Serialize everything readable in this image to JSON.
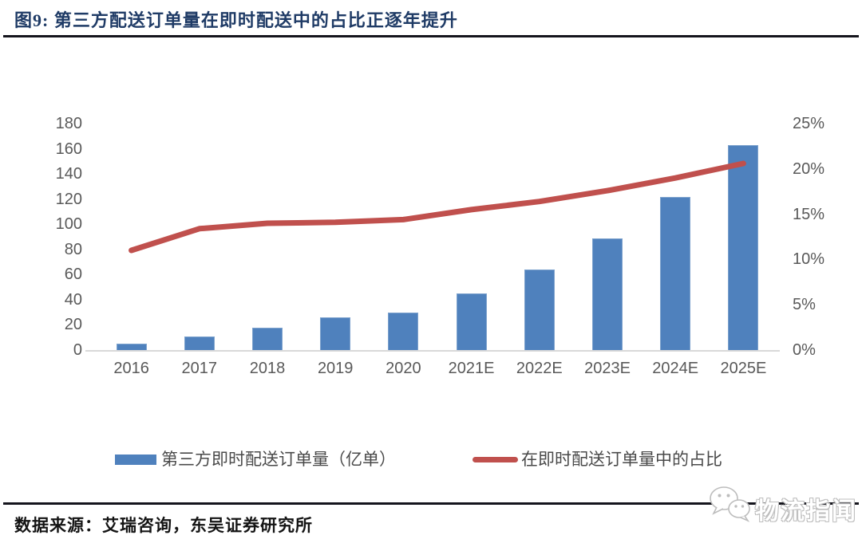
{
  "header": {
    "title": "图9:  第三方配送订单量在即时配送中的占比正逐年提升"
  },
  "chart_data": {
    "type": "bar",
    "subtype": "bar+line combo",
    "categories": [
      "2016",
      "2017",
      "2018",
      "2019",
      "2020",
      "2021E",
      "2022E",
      "2023E",
      "2024E",
      "2025E"
    ],
    "series": [
      {
        "name": "第三方即时配送订单量（亿单）",
        "type": "bar",
        "axis": "left",
        "color": "#4f81bd",
        "values": [
          5,
          11,
          18,
          26,
          30,
          45,
          64,
          89,
          122,
          163
        ]
      },
      {
        "name": "在即时配送订单量中的占比",
        "type": "line",
        "axis": "right",
        "color": "#c0504d",
        "values": [
          11.0,
          13.4,
          14.0,
          14.1,
          14.4,
          15.5,
          16.4,
          17.6,
          19.0,
          20.6
        ]
      }
    ],
    "left_axis": {
      "min": 0,
      "max": 180,
      "step": 20,
      "ticks": [
        "0",
        "20",
        "40",
        "60",
        "80",
        "100",
        "120",
        "140",
        "160",
        "180"
      ]
    },
    "right_axis": {
      "min": 0,
      "max": 25,
      "step": 5,
      "ticks": [
        "0%",
        "5%",
        "10%",
        "15%",
        "20%",
        "25%"
      ]
    },
    "grid": false,
    "legend_position": "bottom",
    "title": "第三方配送订单量在即时配送中的占比正逐年提升"
  },
  "footer": {
    "source": "数据来源：艾瑞咨询，东吴证券研究所",
    "watermark_text": "物流指闻"
  },
  "colors": {
    "bar": "#4f81bd",
    "line": "#c0504d",
    "title_text": "#1f3b66",
    "axis_labels": "#595959",
    "rule": "#14141c"
  }
}
